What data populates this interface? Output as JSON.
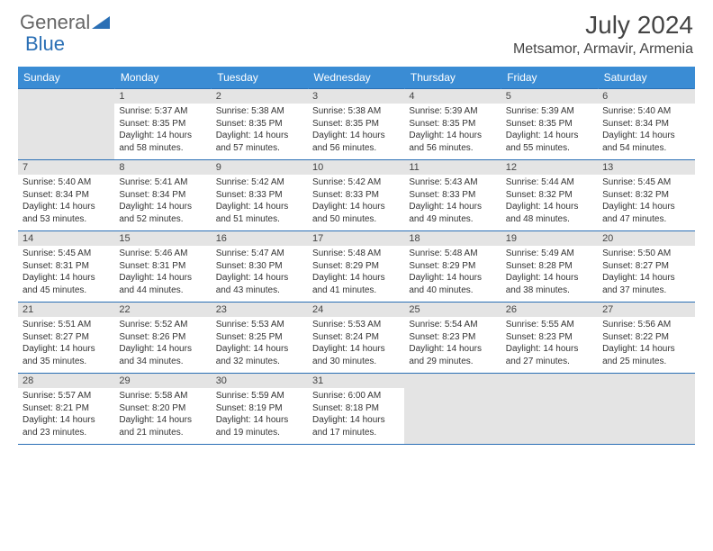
{
  "logo": {
    "text1": "General",
    "text2": "Blue"
  },
  "title": "July 2024",
  "location": "Metsamor, Armavir, Armenia",
  "colors": {
    "header_bg": "#3a8cd4",
    "header_text": "#ffffff",
    "daynum_bg": "#e4e4e4",
    "border": "#2a6fb5",
    "body_text": "#333333",
    "title_text": "#444444",
    "logo_blue": "#2a6fb5"
  },
  "weekdays": [
    "Sunday",
    "Monday",
    "Tuesday",
    "Wednesday",
    "Thursday",
    "Friday",
    "Saturday"
  ],
  "weeks": [
    [
      null,
      {
        "n": "1",
        "sr": "Sunrise: 5:37 AM",
        "ss": "Sunset: 8:35 PM",
        "dl": "Daylight: 14 hours and 58 minutes."
      },
      {
        "n": "2",
        "sr": "Sunrise: 5:38 AM",
        "ss": "Sunset: 8:35 PM",
        "dl": "Daylight: 14 hours and 57 minutes."
      },
      {
        "n": "3",
        "sr": "Sunrise: 5:38 AM",
        "ss": "Sunset: 8:35 PM",
        "dl": "Daylight: 14 hours and 56 minutes."
      },
      {
        "n": "4",
        "sr": "Sunrise: 5:39 AM",
        "ss": "Sunset: 8:35 PM",
        "dl": "Daylight: 14 hours and 56 minutes."
      },
      {
        "n": "5",
        "sr": "Sunrise: 5:39 AM",
        "ss": "Sunset: 8:35 PM",
        "dl": "Daylight: 14 hours and 55 minutes."
      },
      {
        "n": "6",
        "sr": "Sunrise: 5:40 AM",
        "ss": "Sunset: 8:34 PM",
        "dl": "Daylight: 14 hours and 54 minutes."
      }
    ],
    [
      {
        "n": "7",
        "sr": "Sunrise: 5:40 AM",
        "ss": "Sunset: 8:34 PM",
        "dl": "Daylight: 14 hours and 53 minutes."
      },
      {
        "n": "8",
        "sr": "Sunrise: 5:41 AM",
        "ss": "Sunset: 8:34 PM",
        "dl": "Daylight: 14 hours and 52 minutes."
      },
      {
        "n": "9",
        "sr": "Sunrise: 5:42 AM",
        "ss": "Sunset: 8:33 PM",
        "dl": "Daylight: 14 hours and 51 minutes."
      },
      {
        "n": "10",
        "sr": "Sunrise: 5:42 AM",
        "ss": "Sunset: 8:33 PM",
        "dl": "Daylight: 14 hours and 50 minutes."
      },
      {
        "n": "11",
        "sr": "Sunrise: 5:43 AM",
        "ss": "Sunset: 8:33 PM",
        "dl": "Daylight: 14 hours and 49 minutes."
      },
      {
        "n": "12",
        "sr": "Sunrise: 5:44 AM",
        "ss": "Sunset: 8:32 PM",
        "dl": "Daylight: 14 hours and 48 minutes."
      },
      {
        "n": "13",
        "sr": "Sunrise: 5:45 AM",
        "ss": "Sunset: 8:32 PM",
        "dl": "Daylight: 14 hours and 47 minutes."
      }
    ],
    [
      {
        "n": "14",
        "sr": "Sunrise: 5:45 AM",
        "ss": "Sunset: 8:31 PM",
        "dl": "Daylight: 14 hours and 45 minutes."
      },
      {
        "n": "15",
        "sr": "Sunrise: 5:46 AM",
        "ss": "Sunset: 8:31 PM",
        "dl": "Daylight: 14 hours and 44 minutes."
      },
      {
        "n": "16",
        "sr": "Sunrise: 5:47 AM",
        "ss": "Sunset: 8:30 PM",
        "dl": "Daylight: 14 hours and 43 minutes."
      },
      {
        "n": "17",
        "sr": "Sunrise: 5:48 AM",
        "ss": "Sunset: 8:29 PM",
        "dl": "Daylight: 14 hours and 41 minutes."
      },
      {
        "n": "18",
        "sr": "Sunrise: 5:48 AM",
        "ss": "Sunset: 8:29 PM",
        "dl": "Daylight: 14 hours and 40 minutes."
      },
      {
        "n": "19",
        "sr": "Sunrise: 5:49 AM",
        "ss": "Sunset: 8:28 PM",
        "dl": "Daylight: 14 hours and 38 minutes."
      },
      {
        "n": "20",
        "sr": "Sunrise: 5:50 AM",
        "ss": "Sunset: 8:27 PM",
        "dl": "Daylight: 14 hours and 37 minutes."
      }
    ],
    [
      {
        "n": "21",
        "sr": "Sunrise: 5:51 AM",
        "ss": "Sunset: 8:27 PM",
        "dl": "Daylight: 14 hours and 35 minutes."
      },
      {
        "n": "22",
        "sr": "Sunrise: 5:52 AM",
        "ss": "Sunset: 8:26 PM",
        "dl": "Daylight: 14 hours and 34 minutes."
      },
      {
        "n": "23",
        "sr": "Sunrise: 5:53 AM",
        "ss": "Sunset: 8:25 PM",
        "dl": "Daylight: 14 hours and 32 minutes."
      },
      {
        "n": "24",
        "sr": "Sunrise: 5:53 AM",
        "ss": "Sunset: 8:24 PM",
        "dl": "Daylight: 14 hours and 30 minutes."
      },
      {
        "n": "25",
        "sr": "Sunrise: 5:54 AM",
        "ss": "Sunset: 8:23 PM",
        "dl": "Daylight: 14 hours and 29 minutes."
      },
      {
        "n": "26",
        "sr": "Sunrise: 5:55 AM",
        "ss": "Sunset: 8:23 PM",
        "dl": "Daylight: 14 hours and 27 minutes."
      },
      {
        "n": "27",
        "sr": "Sunrise: 5:56 AM",
        "ss": "Sunset: 8:22 PM",
        "dl": "Daylight: 14 hours and 25 minutes."
      }
    ],
    [
      {
        "n": "28",
        "sr": "Sunrise: 5:57 AM",
        "ss": "Sunset: 8:21 PM",
        "dl": "Daylight: 14 hours and 23 minutes."
      },
      {
        "n": "29",
        "sr": "Sunrise: 5:58 AM",
        "ss": "Sunset: 8:20 PM",
        "dl": "Daylight: 14 hours and 21 minutes."
      },
      {
        "n": "30",
        "sr": "Sunrise: 5:59 AM",
        "ss": "Sunset: 8:19 PM",
        "dl": "Daylight: 14 hours and 19 minutes."
      },
      {
        "n": "31",
        "sr": "Sunrise: 6:00 AM",
        "ss": "Sunset: 8:18 PM",
        "dl": "Daylight: 14 hours and 17 minutes."
      },
      null,
      null,
      null
    ]
  ]
}
